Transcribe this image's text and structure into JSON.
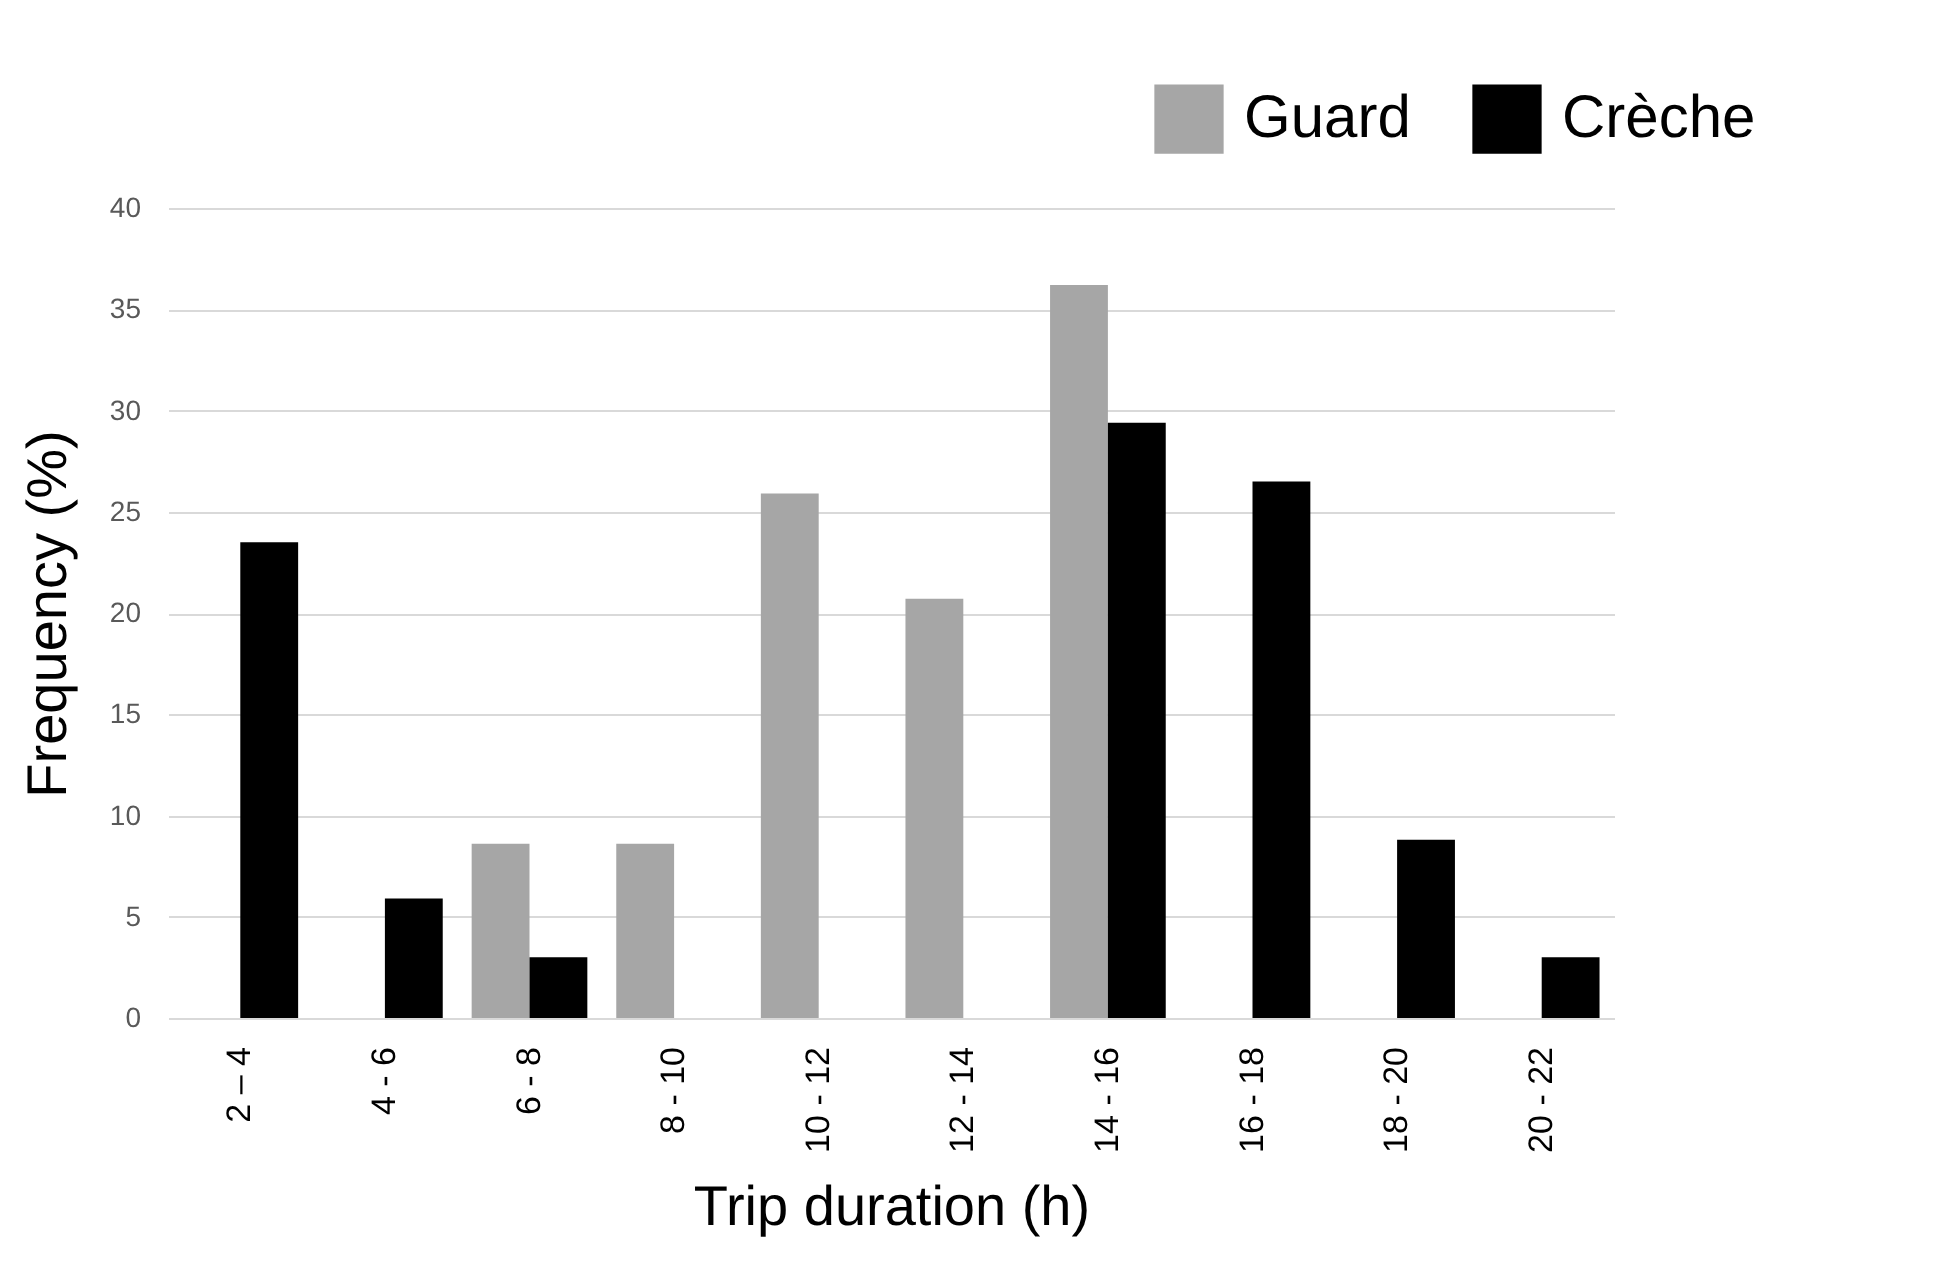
{
  "chart_data": {
    "type": "bar",
    "xlabel": "Trip duration (h)",
    "ylabel": "Frequency (%)",
    "categories": [
      "2 – 4",
      "4 - 6",
      "6 - 8",
      "8 - 10",
      "10 - 12",
      "12 - 14",
      "14 - 16",
      "16 - 18",
      "18 - 20",
      "20 - 22"
    ],
    "series": [
      {
        "name": "Guard",
        "color": "#a6a6a6",
        "values": [
          null,
          null,
          8.6,
          8.6,
          25.9,
          20.7,
          36.2,
          null,
          null,
          null
        ]
      },
      {
        "name": "Crèche",
        "color": "#000000",
        "values": [
          23.5,
          5.9,
          3.0,
          null,
          null,
          null,
          29.4,
          26.5,
          8.8,
          3.0
        ]
      }
    ],
    "ylim": [
      0,
      40
    ],
    "yticks": [
      0,
      5,
      10,
      15,
      20,
      25,
      30,
      35,
      40
    ],
    "grid": "y",
    "legend": "top right"
  }
}
